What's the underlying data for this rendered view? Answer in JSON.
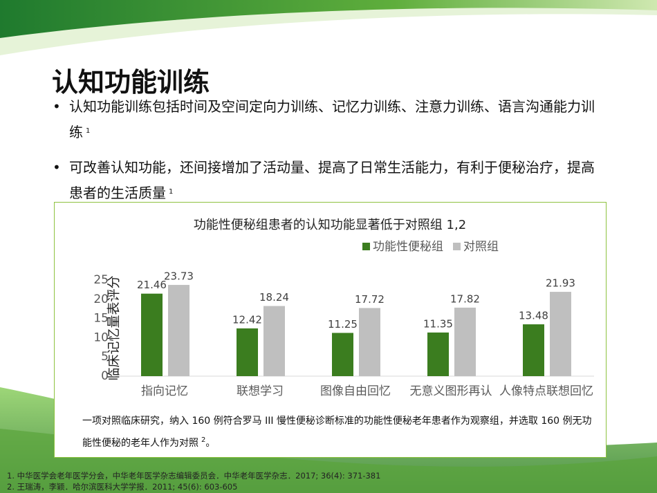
{
  "title": "认知功能训练",
  "bullets": [
    {
      "text": "认知功能训练包括时间及空间定向力训练、记忆力训练、注意力训练、语言沟通能力训练",
      "sup": "1"
    },
    {
      "text": "可改善认知功能，还间接增加了活动量、提高了日常生活能力，有利于便秘治疗，提高患者的生活质量",
      "sup": "1"
    }
  ],
  "chart_data": {
    "type": "bar",
    "title": "功能性便秘组患者的认知功能显著低于对照组 1,2",
    "ylabel": "临床记忆量表评分",
    "categories": [
      "指向记忆",
      "联想学习",
      "图像自由回忆",
      "无意义图形再认",
      "人像特点联想回忆"
    ],
    "series": [
      {
        "name": "功能性便秘组",
        "color": "#3b7d1f",
        "values": [
          21.46,
          12.42,
          11.25,
          11.35,
          13.48
        ]
      },
      {
        "name": "对照组",
        "color": "#bfbfbf",
        "values": [
          23.73,
          18.24,
          17.72,
          17.82,
          21.93
        ]
      }
    ],
    "ylim": [
      0,
      25
    ],
    "yticks": [
      0,
      5,
      10,
      15,
      20,
      25
    ],
    "legend": "top"
  },
  "note": {
    "text": "一项对照临床研究，纳入 160 例符合罗马 III 慢性便秘诊断标准的功能性便秘老年患者作为观察组，并选取 160 例无功能性便秘的老年人作为对照",
    "sup": "2",
    "end": "。"
  },
  "references": [
    "1. 中华医学会老年医学分会，中华老年医学杂志编辑委员会．中华老年医学杂志．2017; 36(4): 371-381",
    "2. 王瑞涛，李颖．哈尔滨医科大学学报．2011; 45(6): 603-605"
  ]
}
